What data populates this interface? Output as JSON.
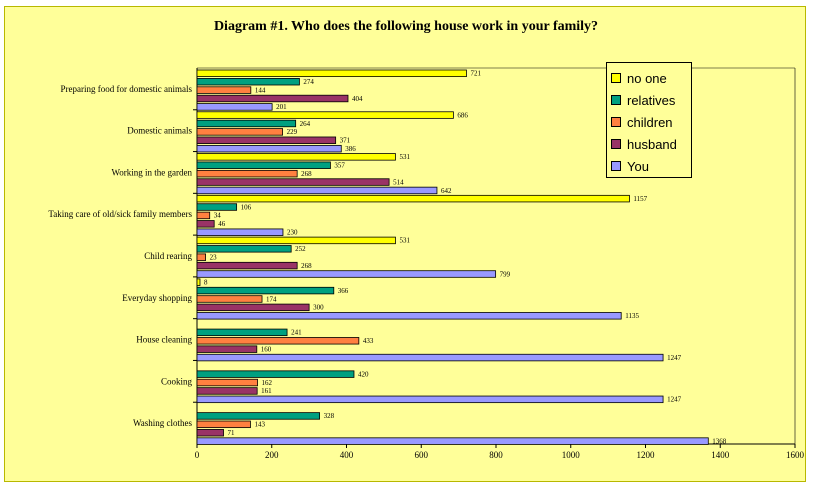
{
  "chart_data": {
    "type": "bar",
    "orientation": "horizontal",
    "title": "Diagram #1. Who does the following house work in your family?",
    "categories": [
      "Preparing food for domestic animals",
      "Domestic animals",
      "Working in the garden",
      "Taking care of old/sick family members",
      "Child rearing",
      "Everyday shopping",
      "House cleaning",
      "Cooking",
      "Washing clothes"
    ],
    "series": [
      {
        "name": "no one",
        "color": "#ffff00",
        "values": [
          721,
          686,
          531,
          1157,
          531,
          8,
          null,
          null,
          null
        ],
        "labels": [
          "721",
          "686",
          "531",
          "1157",
          "531",
          "8",
          "",
          "",
          ""
        ]
      },
      {
        "name": "relatives",
        "color": "#00a080",
        "values": [
          274,
          264,
          357,
          106,
          252,
          366,
          241,
          420,
          328
        ],
        "labels": [
          "274",
          "264",
          "357",
          "106",
          "252",
          "366",
          "241",
          "420",
          "328"
        ]
      },
      {
        "name": "children",
        "color": "#ff8040",
        "values": [
          144,
          229,
          268,
          34,
          23,
          174,
          433,
          162,
          143
        ],
        "labels": [
          "144",
          "229",
          "268",
          "34",
          "23",
          "174",
          "433",
          "162",
          "143"
        ]
      },
      {
        "name": "husband",
        "color": "#993366",
        "values": [
          404,
          371,
          514,
          46,
          268,
          300,
          160,
          161,
          71
        ],
        "labels": [
          "404",
          "371",
          "514",
          "46",
          "268",
          "300",
          "160",
          "161",
          "71"
        ]
      },
      {
        "name": "You",
        "color": "#9999ff",
        "values": [
          201,
          386,
          642,
          230,
          799,
          1135,
          1247,
          1247,
          1368
        ],
        "labels": [
          "201",
          "386",
          "642",
          "230",
          "799",
          "1135",
          "1247",
          "1247",
          "1368"
        ]
      }
    ],
    "xlim": [
      0,
      1600
    ],
    "xticks": [
      0,
      200,
      400,
      600,
      800,
      1000,
      1200,
      1400,
      1600
    ],
    "legend_position": "top-right",
    "grid": false
  },
  "legend_order": [
    0,
    1,
    2,
    3,
    4
  ]
}
